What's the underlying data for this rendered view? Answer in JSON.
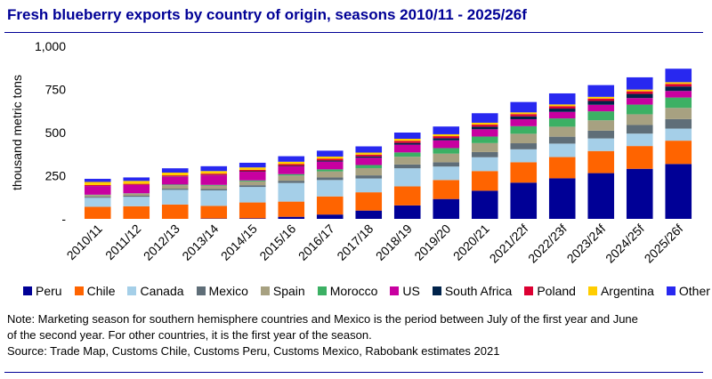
{
  "title": "Fresh blueberry exports by country of origin, seasons 2010/11 - 2025/26f",
  "notes": {
    "line1": "Note: Marketing season for southern hemisphere countries and Mexico is the period between July of the first year and June",
    "line2": "of the second year. For other countries, it is the first year of the season.",
    "line3": "Source: Trade Map, Customs Chile, Customs Peru, Customs Mexico, Rabobank estimates 2021"
  },
  "chart_data": {
    "type": "bar",
    "stacked": true,
    "title": "Fresh blueberry exports by country of origin, seasons 2010/11 - 2025/26f",
    "xlabel": "",
    "ylabel": "thousand metric tons",
    "ylim": [
      0,
      1000
    ],
    "yticks": [
      0,
      250,
      500,
      750,
      1000
    ],
    "ytick_labels": [
      "-",
      "250",
      "500",
      "750",
      "1,000"
    ],
    "grid": false,
    "legend_position": "bottom",
    "categories": [
      "2010/11",
      "2011/12",
      "2012/13",
      "2013/14",
      "2014/15",
      "2015/16",
      "2016/17",
      "2017/18",
      "2018/19",
      "2019/20",
      "2020/21",
      "2021/22f",
      "2022/23f",
      "2023/24f",
      "2024/25f",
      "2025/26f"
    ],
    "series": [
      {
        "name": "Peru",
        "color": "#000096",
        "values": [
          0,
          0,
          0,
          2,
          3,
          12,
          25,
          48,
          78,
          115,
          163,
          210,
          235,
          265,
          290,
          318
        ]
      },
      {
        "name": "Chile",
        "color": "#ff6400",
        "values": [
          70,
          73,
          83,
          73,
          92,
          88,
          105,
          106,
          110,
          110,
          114,
          118,
          123,
          128,
          132,
          135
        ]
      },
      {
        "name": "Canada",
        "color": "#a5cfe8",
        "values": [
          52,
          55,
          85,
          90,
          90,
          108,
          95,
          80,
          105,
          78,
          80,
          75,
          78,
          73,
          72,
          70
        ]
      },
      {
        "name": "Mexico",
        "color": "#5f6e78",
        "values": [
          6,
          6,
          7,
          8,
          10,
          13,
          15,
          18,
          22,
          25,
          30,
          35,
          40,
          45,
          50,
          55
        ]
      },
      {
        "name": "Spain",
        "color": "#a7a181",
        "values": [
          10,
          12,
          20,
          20,
          22,
          30,
          35,
          42,
          45,
          50,
          52,
          55,
          58,
          60,
          62,
          65
        ]
      },
      {
        "name": "Morocco",
        "color": "#3cb064",
        "values": [
          2,
          2,
          4,
          4,
          6,
          8,
          12,
          18,
          25,
          32,
          38,
          44,
          48,
          52,
          56,
          60
        ]
      },
      {
        "name": "US",
        "color": "#c800a0",
        "values": [
          50,
          48,
          45,
          55,
          50,
          45,
          45,
          42,
          45,
          45,
          42,
          40,
          38,
          38,
          38,
          38
        ]
      },
      {
        "name": "South Africa",
        "color": "#00234b",
        "values": [
          1,
          1,
          2,
          2,
          3,
          4,
          6,
          8,
          10,
          12,
          15,
          17,
          19,
          22,
          24,
          26
        ]
      },
      {
        "name": "Poland",
        "color": "#dc0032",
        "values": [
          5,
          6,
          6,
          8,
          8,
          9,
          10,
          10,
          12,
          12,
          12,
          13,
          14,
          14,
          15,
          15
        ]
      },
      {
        "name": "Argentina",
        "color": "#ffcd00",
        "values": [
          18,
          17,
          16,
          15,
          14,
          14,
          13,
          12,
          12,
          11,
          11,
          10,
          10,
          10,
          10,
          10
        ]
      },
      {
        "name": "Other",
        "color": "#2828f0",
        "values": [
          18,
          20,
          25,
          28,
          27,
          32,
          34,
          36,
          36,
          45,
          55,
          60,
          64,
          68,
          71,
          78
        ]
      }
    ]
  }
}
